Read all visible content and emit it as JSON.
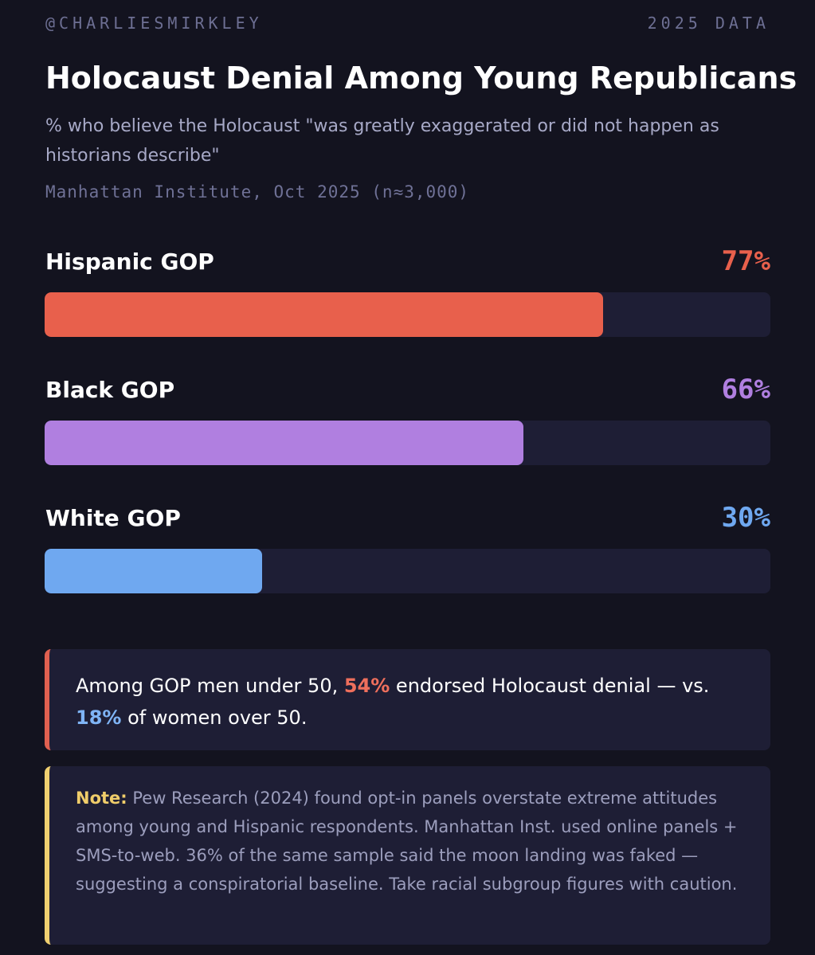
{
  "header": {
    "handle": "@CHARLIESMIRKLEY",
    "tag": "2025 DATA"
  },
  "chart_data": {
    "type": "bar",
    "orientation": "horizontal",
    "title": "Holocaust Denial Among Young Republicans",
    "subtitle": "% who believe the Holocaust \"was greatly exaggerated or did not happen as historians describe\"",
    "source": "Manhattan Institute, Oct 2025 (n≈3,000)",
    "categories": [
      "Hispanic GOP",
      "Black GOP",
      "White GOP"
    ],
    "values": [
      77,
      66,
      30
    ],
    "value_labels": [
      "77%",
      "66%",
      "30%"
    ],
    "colors": [
      "#e8604c",
      "#b07fe0",
      "#6fa8f0"
    ],
    "xlim": [
      0,
      100
    ],
    "grid": false,
    "legend": "none"
  },
  "callout": {
    "part1": "Among GOP men under 50, ",
    "highlight1": "54%",
    "part2": " endorsed Holocaust denial — vs. ",
    "highlight2": "18%",
    "part3": " of women over 50."
  },
  "note": {
    "lead": "Note:",
    "text": " Pew Research (2024) found opt-in panels overstate extreme attitudes among young and Hispanic respondents. Manhattan Inst. used online panels + SMS-to-web. 36% of the same sample said the moon landing was faked — suggesting a conspiratorial baseline. Take racial subgroup figures with caution."
  },
  "colors": {
    "background": "#13131f",
    "track": "#1e1e35",
    "callout_accent": "#e06050",
    "note_accent": "#f0d070"
  }
}
